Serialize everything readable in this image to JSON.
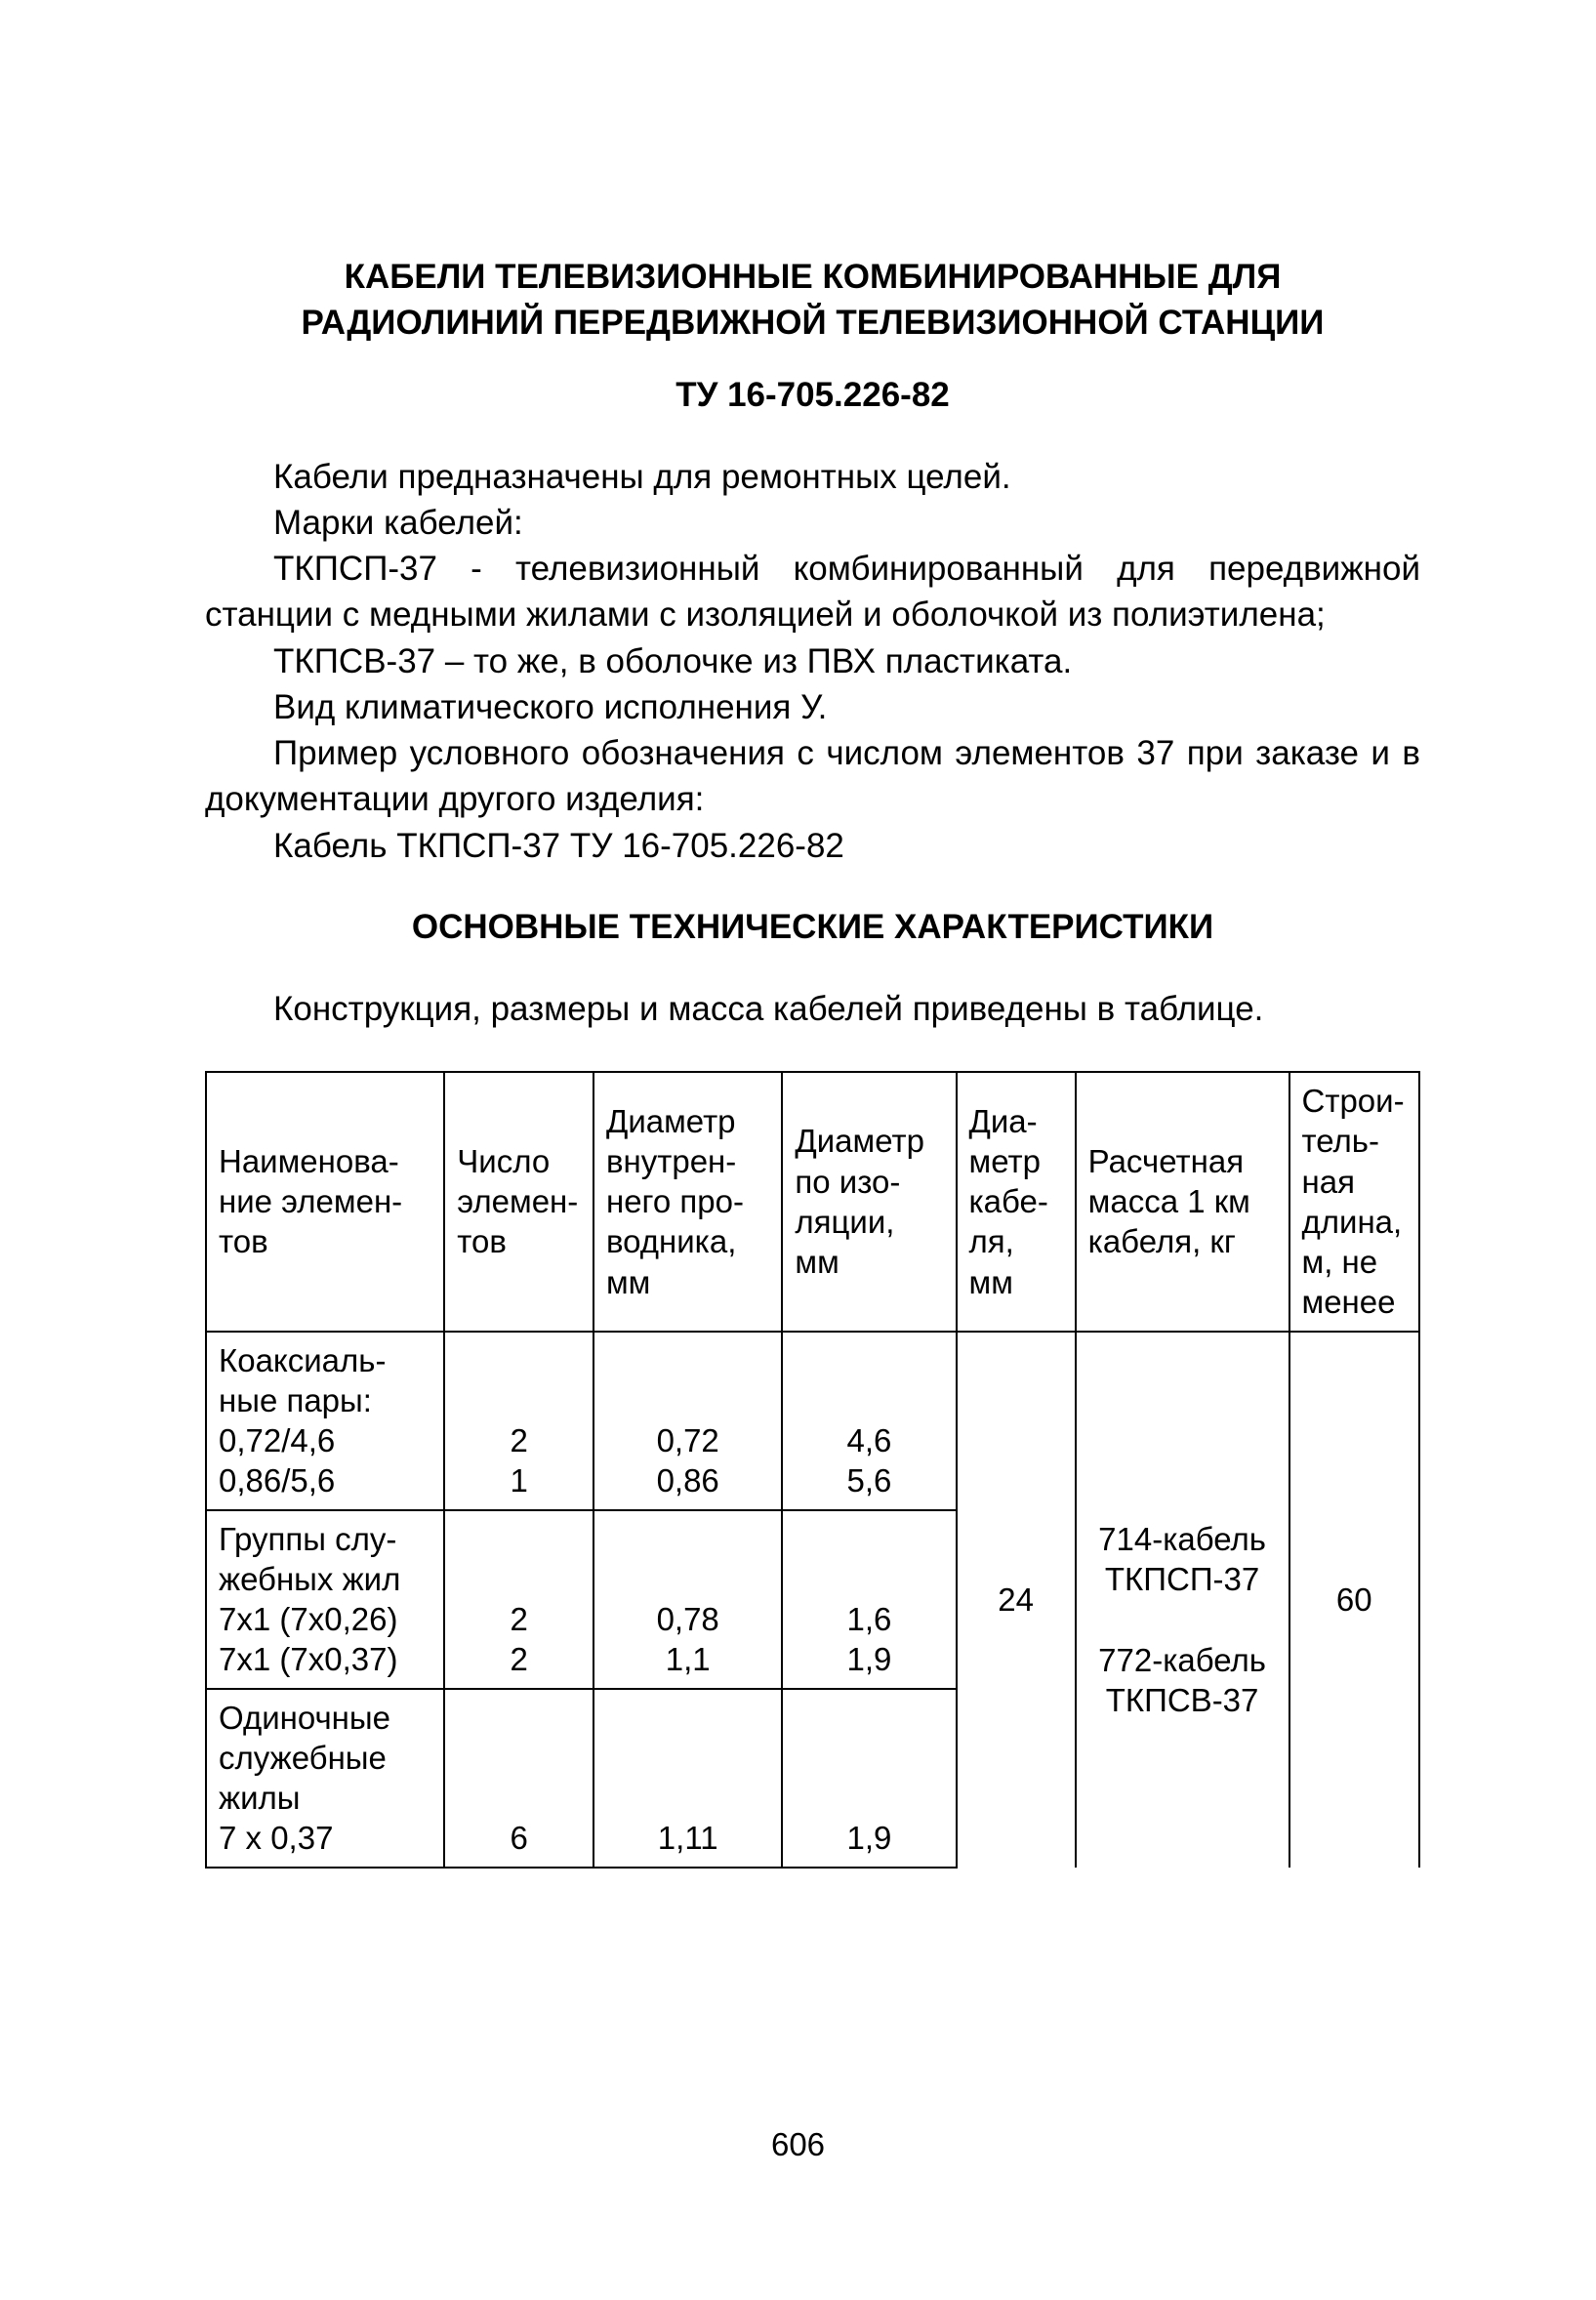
{
  "title_line1": "КАБЕЛИ ТЕЛЕВИЗИОННЫЕ КОМБИНИРОВАННЫЕ ДЛЯ",
  "title_line2": "РАДИОЛИНИЙ ПЕРЕДВИЖНОЙ ТЕЛЕВИЗИОННОЙ СТАНЦИИ",
  "subtitle": "ТУ 16-705.226-82",
  "para1_a": "Кабели предназначены для ремонтных целей.",
  "para1_b": "Марки кабелей:",
  "para1_c": "ТКПСП-37 - телевизионный комбинированный для пере­движной станции с медными жилами с изоляцией и оболочкой из полиэтилена;",
  "para1_d": "ТКПСВ-37 – то же, в оболочке из ПВХ пластиката.",
  "para1_e": "Вид климатического исполнения У.",
  "para1_f": "Пример условного обозначения с числом элементов 37 при заказе и в документации другого изделия:",
  "para1_g": "Кабель ТКПСП-37   ТУ 16-705.226-82",
  "section_title": "ОСНОВНЫЕ ТЕХНИЧЕСКИЕ ХАРАКТЕРИСТИКИ",
  "para2": "Конструкция, размеры и масса кабелей приведены в табли­це.",
  "table": {
    "headers": {
      "name": "Наименова­ние элемен­тов",
      "count": "Число элемен­тов",
      "inner": "Диаметр внутрен­него про­водника, мм",
      "iso": "Диаметр по изо­ляции, мм",
      "dia": "Диа­метр кабе­ля, мм",
      "mass": "Расчетная масса 1 км кабеля, кг",
      "len": "Строи­тель­ная длина, м, не менее"
    },
    "group1_label": "Коаксиаль­ные пары:",
    "group1_r1_name": "0,72/4,6",
    "group1_r1_count": "2",
    "group1_r1_inner": "0,72",
    "group1_r1_iso": "4,6",
    "group1_r2_name": "0,86/5,6",
    "group1_r2_count": "1",
    "group1_r2_inner": "0,86",
    "group1_r2_iso": "5,6",
    "group2_label": "Группы слу­жебных жил",
    "group2_r1_name": "7x1 (7x0,26)",
    "group2_r1_count": "2",
    "group2_r1_inner": "0,78",
    "group2_r1_iso": "1,6",
    "group2_r2_name": "7x1 (7x0,37)",
    "group2_r2_count": "2",
    "group2_r2_inner": "1,1",
    "group2_r2_iso": "1,9",
    "group3_label": "Одиночные служебные жилы",
    "group3_r1_name": "7 x 0,37",
    "group3_r1_count": "6",
    "group3_r1_inner": "1,11",
    "group3_r1_iso": "1,9",
    "dia_value": "24",
    "mass_line1": "714-кабель",
    "mass_line2": "ТКПСП-37",
    "mass_line3": "772-кабель",
    "mass_line4": "ТКПСВ-37",
    "len_value": "60"
  },
  "page_number": "606"
}
